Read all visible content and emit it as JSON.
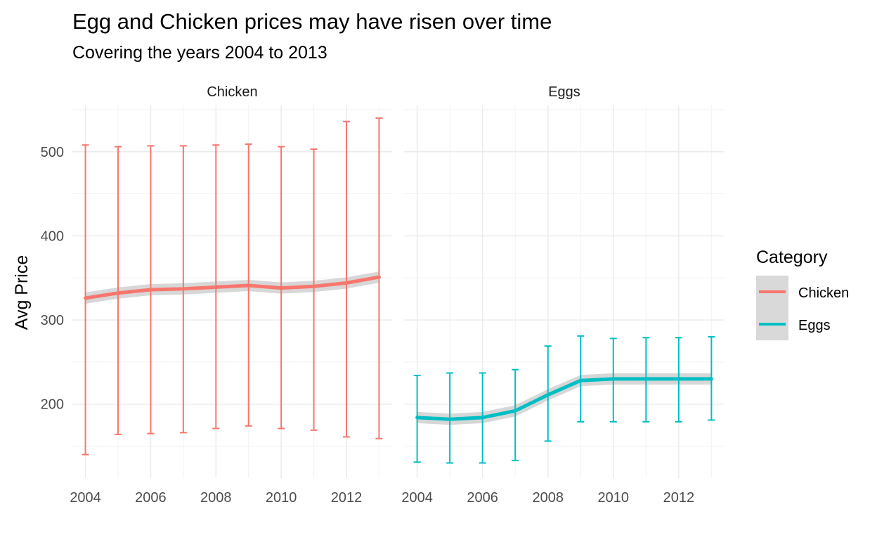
{
  "chart_data": {
    "type": "line",
    "title": "Egg and Chicken prices may have risen over time",
    "subtitle": "Covering the years 2004 to 2013",
    "xlabel": "",
    "ylabel": "Avg Price",
    "xlim": [
      2003.6,
      2013.4
    ],
    "ylim": [
      112,
      555
    ],
    "x_ticks": [
      "2004",
      "2006",
      "2008",
      "2010",
      "2012"
    ],
    "y_ticks": [
      "200",
      "300",
      "400",
      "500"
    ],
    "legend": {
      "title": "Category",
      "position": "right",
      "items": [
        {
          "label": "Chicken",
          "color": "#F8766D"
        },
        {
          "label": "Eggs",
          "color": "#00BFC4"
        }
      ]
    },
    "facets": [
      {
        "label": "Chicken",
        "color": "#F8766D",
        "x": [
          2004,
          2005,
          2006,
          2007,
          2008,
          2009,
          2010,
          2011,
          2012,
          2013
        ],
        "smooth": [
          326,
          332,
          336,
          337,
          339,
          341,
          338,
          340,
          344,
          351
        ],
        "error_low": [
          140,
          164,
          165,
          166,
          171,
          174,
          171,
          169,
          161,
          159
        ],
        "error_high": [
          508,
          506,
          507,
          507,
          508,
          509,
          506,
          503,
          536,
          540
        ]
      },
      {
        "label": "Eggs",
        "color": "#00BFC4",
        "x": [
          2004,
          2005,
          2006,
          2007,
          2008,
          2009,
          2010,
          2011,
          2012,
          2013
        ],
        "smooth": [
          184,
          182,
          184,
          192,
          211,
          228,
          230,
          230,
          230,
          230
        ],
        "error_low": [
          131,
          130,
          130,
          133,
          156,
          179,
          179,
          179,
          179,
          181
        ],
        "error_high": [
          234,
          237,
          237,
          241,
          269,
          281,
          278,
          279,
          279,
          280
        ]
      }
    ]
  }
}
